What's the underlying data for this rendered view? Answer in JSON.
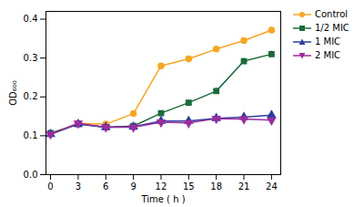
{
  "chart_data": {
    "type": "line",
    "xlabel": "Time ( h )",
    "ylabel": "OD₆₀₀",
    "x": [
      0,
      3,
      6,
      9,
      12,
      15,
      18,
      21,
      24
    ],
    "series": [
      {
        "name": "Control",
        "color": "#F5A623",
        "marker": "circle",
        "values": [
          0.105,
          0.132,
          0.13,
          0.157,
          0.28,
          0.298,
          0.323,
          0.345,
          0.372
        ],
        "errors": [
          0.003,
          0.003,
          0.003,
          0.004,
          0.005,
          0.004,
          0.004,
          0.005,
          0.007
        ]
      },
      {
        "name": "1/2 MIC",
        "color": "#1A6B3C",
        "marker": "square",
        "values": [
          0.107,
          0.13,
          0.122,
          0.125,
          0.158,
          0.185,
          0.215,
          0.292,
          0.31
        ],
        "errors": [
          0.003,
          0.003,
          0.003,
          0.003,
          0.006,
          0.007,
          0.008,
          0.007,
          0.008
        ]
      },
      {
        "name": "1 MIC",
        "color": "#2C3E9E",
        "marker": "triangle-up",
        "values": [
          0.104,
          0.13,
          0.122,
          0.123,
          0.138,
          0.138,
          0.145,
          0.148,
          0.153
        ],
        "errors": [
          0.002,
          0.003,
          0.002,
          0.002,
          0.003,
          0.003,
          0.003,
          0.003,
          0.004
        ]
      },
      {
        "name": "2 MIC",
        "color": "#9B2CA0",
        "marker": "triangle-down",
        "values": [
          0.104,
          0.132,
          0.122,
          0.122,
          0.135,
          0.133,
          0.144,
          0.143,
          0.14
        ],
        "errors": [
          0.002,
          0.003,
          0.002,
          0.002,
          0.003,
          0.003,
          0.003,
          0.003,
          0.003
        ]
      }
    ],
    "xlim": [
      -0.5,
      25
    ],
    "ylim": [
      0.0,
      0.42
    ],
    "xticks": [
      0,
      3,
      6,
      9,
      12,
      15,
      18,
      21,
      24
    ],
    "yticks": [
      {
        "value": 0.0,
        "label": "0.0"
      },
      0.1,
      0.2,
      0.3,
      0.4
    ],
    "grid": false,
    "legend": "right"
  }
}
